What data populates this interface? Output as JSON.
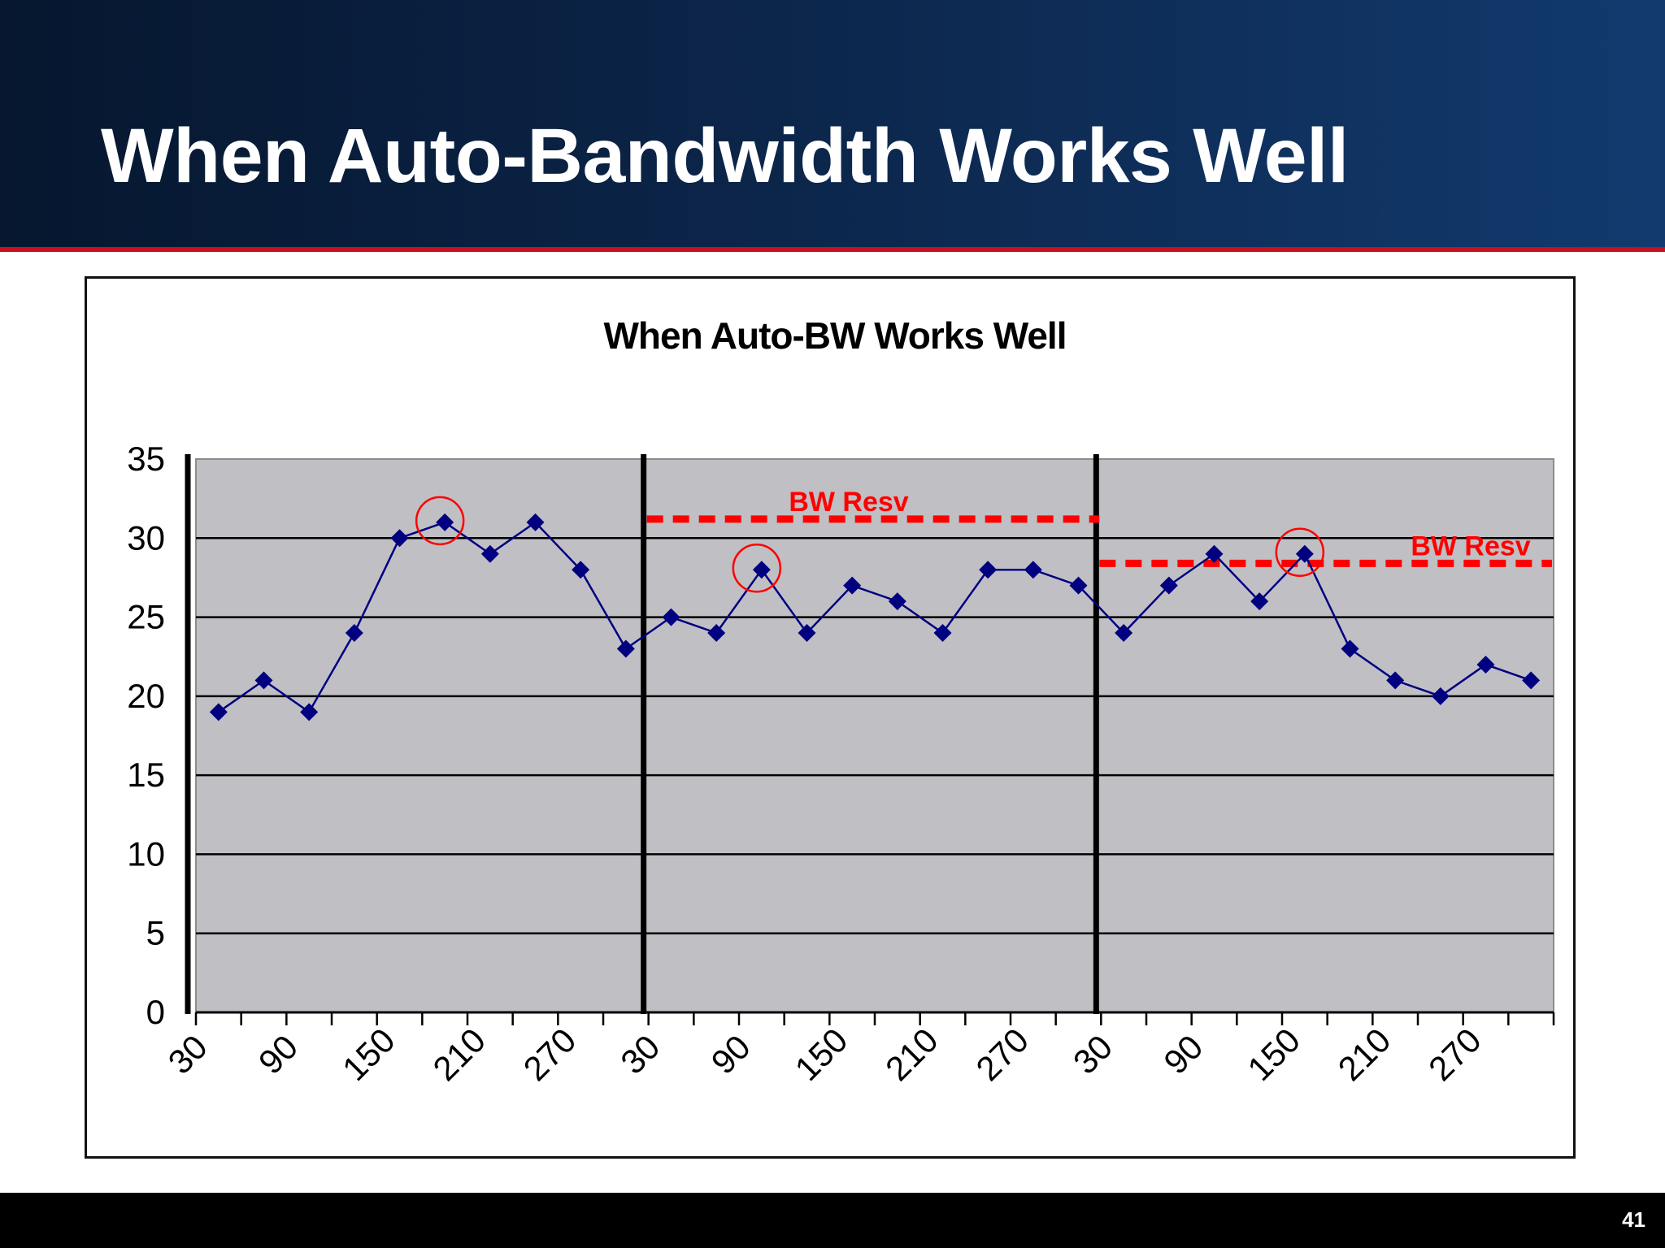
{
  "slide": {
    "title": "When Auto-Bandwidth Works Well",
    "page_number": "41",
    "colors": {
      "header_dark": "#06172f",
      "header_light": "#123a6e",
      "accent_rule": "#c8101e",
      "plot_bg": "#c0bfc4",
      "series": "#000080",
      "annotation": "#ff0000"
    }
  },
  "chart_data": {
    "type": "line",
    "title": "When Auto-BW Works Well",
    "xlabel": "",
    "ylabel": "",
    "ylim": [
      0,
      35
    ],
    "yticks": [
      0,
      5,
      10,
      15,
      20,
      25,
      30,
      35
    ],
    "grid": true,
    "legend": "none",
    "x_tick_labels": [
      "30",
      "90",
      "150",
      "210",
      "270",
      "30",
      "90",
      "150",
      "210",
      "270",
      "30",
      "90",
      "150",
      "210",
      "270"
    ],
    "series": [
      {
        "values": [
          19,
          21,
          19,
          24,
          30,
          31,
          29,
          31,
          28,
          23,
          25,
          24,
          28,
          24,
          27,
          26,
          24,
          28,
          28,
          27,
          24,
          27,
          29,
          26,
          29,
          23,
          21,
          20,
          22,
          21
        ],
        "marker": "diamond"
      }
    ],
    "annotations": {
      "dividers_after_point": [
        0,
        10,
        20
      ],
      "bw_resv": [
        {
          "label": "BW Resv",
          "y": 31.2,
          "from_point": 10,
          "to_point": 20
        },
        {
          "label": "BW Resv",
          "y": 28.4,
          "from_point": 20,
          "to_point": 30
        }
      ],
      "circled_points": [
        5,
        12,
        24
      ]
    }
  }
}
